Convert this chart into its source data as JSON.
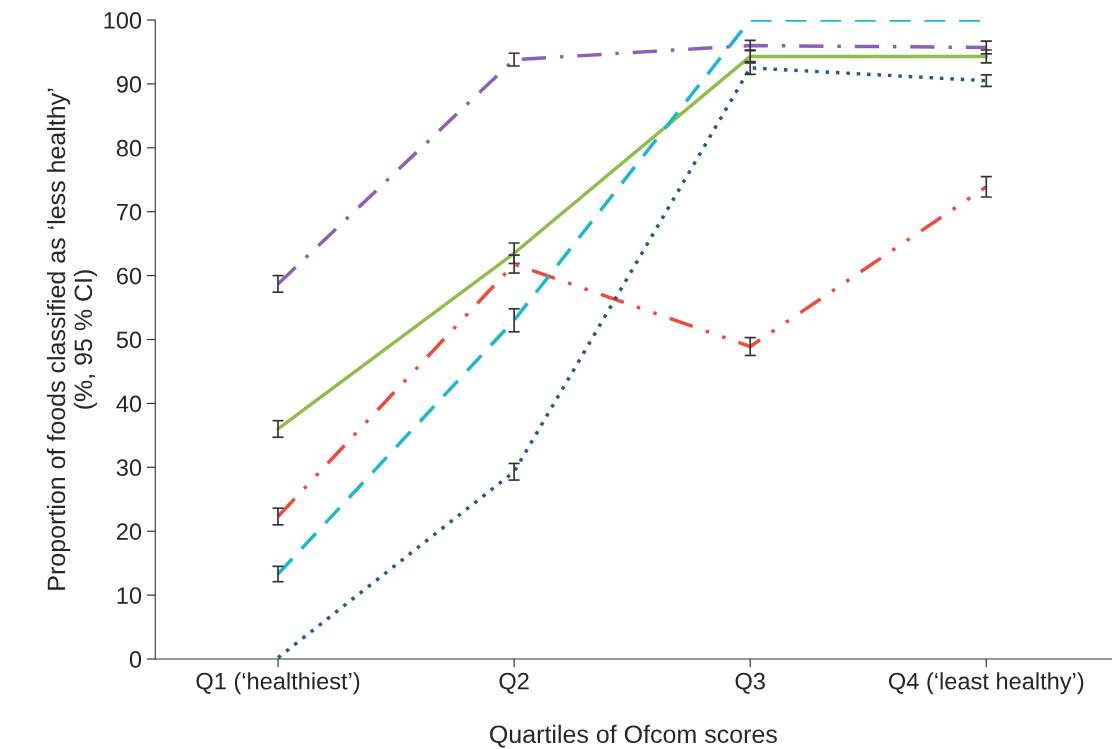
{
  "chart_data": {
    "type": "line",
    "xlabel": "Quartiles of Ofcom scores",
    "ylabel": "Proportion of foods classified as ‘less healthy’\n(%, 95 % CI)",
    "categories": [
      "Q1 (‘healthiest’)",
      "Q2",
      "Q3",
      "Q4 (‘least healthy’)"
    ],
    "ylim": [
      0,
      100
    ],
    "yticks": [
      0,
      10,
      20,
      30,
      40,
      50,
      60,
      70,
      80,
      90,
      100
    ],
    "grid": false,
    "marker": "none",
    "series": [
      {
        "color": "#8e5fb8",
        "line_style": "dashdot",
        "values": [
          58.7,
          93.8,
          96.0,
          95.7
        ],
        "errors": [
          1.3,
          1.0,
          0.8,
          1.0
        ]
      },
      {
        "color": "#8cc04a",
        "line_style": "solid",
        "values": [
          36.0,
          63.5,
          94.3,
          94.3
        ],
        "errors": [
          1.3,
          1.6,
          1.0,
          1.0
        ]
      },
      {
        "color": "#f04a3a",
        "line_style": "dashdotdot",
        "values": [
          22.3,
          61.8,
          48.9,
          73.9
        ],
        "errors": [
          1.3,
          1.4,
          1.4,
          1.6
        ]
      },
      {
        "color": "#1ab8d4",
        "line_style": "dashed",
        "values": [
          13.3,
          53.0,
          100,
          100
        ],
        "errors": [
          1.2,
          1.8,
          null,
          null
        ]
      },
      {
        "color": "#1f5a9a",
        "line_style": "dotted",
        "values": [
          0.2,
          29.3,
          92.5,
          90.5
        ],
        "errors": [
          null,
          1.3,
          1.0,
          0.9
        ]
      }
    ]
  }
}
